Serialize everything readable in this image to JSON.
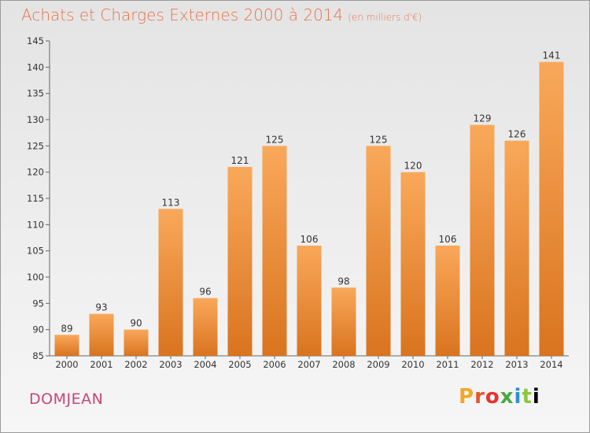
{
  "header": {
    "title": "Achats et Charges Externes 2000 à 2014",
    "subtitle": "(en milliers d'€)"
  },
  "footer": {
    "town": "DOMJEAN",
    "logo_letters": [
      "P",
      "r",
      "o",
      "x",
      "i",
      "t",
      "i"
    ]
  },
  "colors": {
    "bar_top": "#f9a85a",
    "bar_bottom": "#d9741f",
    "title": "#e8734a",
    "town": "#c94475"
  },
  "chart_data": {
    "type": "bar",
    "categories": [
      "2000",
      "2001",
      "2002",
      "2003",
      "2004",
      "2005",
      "2006",
      "2007",
      "2008",
      "2009",
      "2010",
      "2011",
      "2012",
      "2013",
      "2014"
    ],
    "values": [
      89,
      93,
      90,
      113,
      96,
      121,
      125,
      106,
      98,
      125,
      120,
      106,
      129,
      126,
      141
    ],
    "title": "Achats et Charges Externes 2000 à 2014",
    "subtitle": "(en milliers d'€)",
    "ylim": [
      85,
      145
    ],
    "yticks": [
      85,
      90,
      95,
      100,
      105,
      110,
      115,
      120,
      125,
      130,
      135,
      140,
      145
    ],
    "data_labels": true,
    "grid": false,
    "legend": "none"
  }
}
